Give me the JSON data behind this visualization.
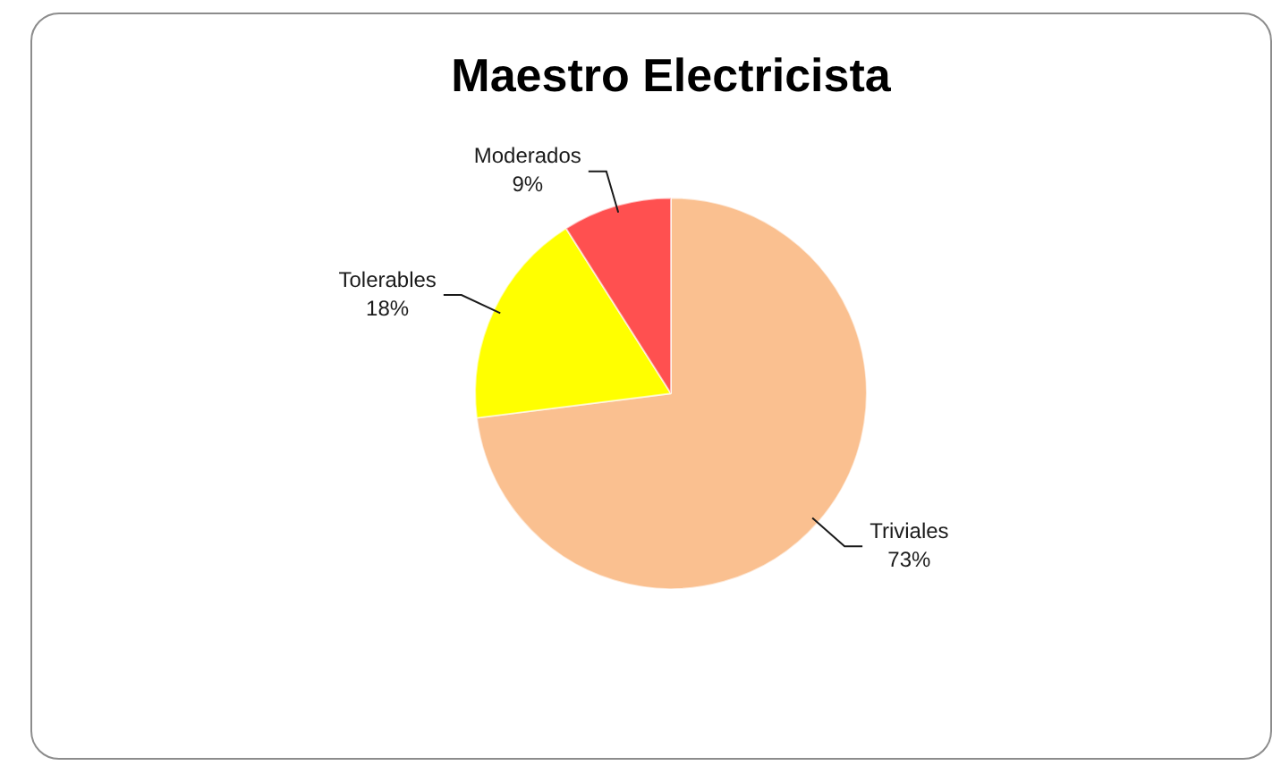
{
  "chart_data": {
    "type": "pie",
    "title": "Maestro Electricista",
    "categories": [
      "Triviales",
      "Tolerables",
      "Moderados"
    ],
    "values": [
      73,
      18,
      9
    ],
    "colors": [
      "#fac090",
      "#ffff00",
      "#ff5050"
    ],
    "value_labels": [
      "73%",
      "18%",
      "9%"
    ]
  }
}
